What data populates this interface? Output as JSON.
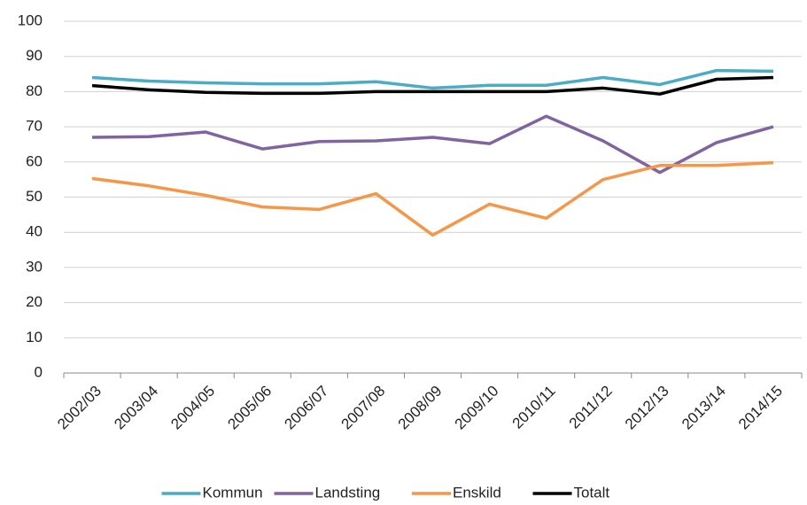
{
  "chart_data": {
    "type": "line",
    "categories": [
      "2002/03",
      "2003/04",
      "2004/05",
      "2005/06",
      "2006/07",
      "2007/08",
      "2008/09",
      "2009/10",
      "2010/11",
      "2011/12",
      "2012/13",
      "2013/14",
      "2014/15"
    ],
    "series": [
      {
        "name": "Kommun",
        "color": "#4bacc6",
        "values": [
          84,
          83,
          82.5,
          82.2,
          82.2,
          82.8,
          81,
          81.8,
          81.8,
          84,
          82,
          86,
          85.8
        ]
      },
      {
        "name": "Landsting",
        "color": "#8064a2",
        "values": [
          67,
          67.2,
          68.5,
          63.7,
          65.8,
          66,
          67,
          65.2,
          73,
          66,
          57,
          65.5,
          70
        ]
      },
      {
        "name": "Enskild",
        "color": "#f79646",
        "values": [
          55.3,
          53.2,
          50.5,
          47.2,
          46.5,
          51,
          39.2,
          48,
          44,
          55,
          59,
          59,
          59.8
        ]
      },
      {
        "name": "Totalt",
        "color": "#000000",
        "values": [
          81.7,
          80.5,
          79.8,
          79.5,
          79.5,
          80,
          80,
          80,
          80,
          81,
          79.3,
          83.5,
          84
        ]
      }
    ],
    "ylim": [
      0,
      100
    ],
    "yticks": [
      0,
      10,
      20,
      30,
      40,
      50,
      60,
      70,
      80,
      90,
      100
    ],
    "grid": true,
    "legend": "bottom"
  }
}
